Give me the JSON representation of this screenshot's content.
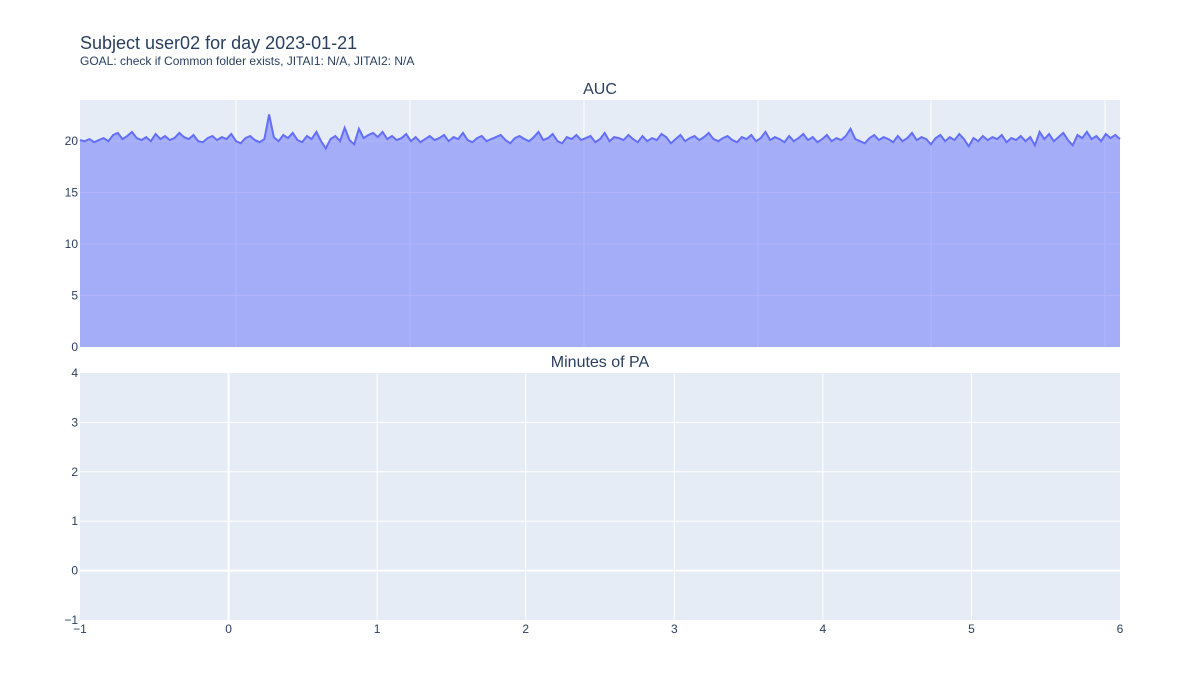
{
  "header": {
    "title": "Subject user02 for day 2023-01-21",
    "subtitle": "GOAL: check if Common folder exists, JITAI1: N/A, JITAI2: N/A"
  },
  "colors": {
    "plot_bg": "#e5ecf6",
    "grid": "#ffffff",
    "line": "#636efa",
    "fill": "rgba(99,110,250,0.5)",
    "text": "#2a3f5f"
  },
  "chart_data": [
    {
      "type": "area",
      "title": "AUC",
      "ylim": [
        0,
        24
      ],
      "yticks": [
        "0",
        "5",
        "10",
        "15",
        "20"
      ],
      "ytick_values": [
        0,
        5,
        10,
        15,
        20
      ],
      "grid": true,
      "xtick_labels_shown": false,
      "values": [
        20.1,
        20.0,
        20.2,
        19.9,
        20.1,
        20.3,
        20.0,
        20.6,
        20.8,
        20.2,
        20.5,
        20.9,
        20.3,
        20.1,
        20.4,
        20.0,
        20.7,
        20.2,
        20.5,
        20.1,
        20.3,
        20.8,
        20.4,
        20.2,
        20.6,
        20.0,
        19.9,
        20.3,
        20.5,
        20.1,
        20.4,
        20.2,
        20.7,
        20.0,
        19.8,
        20.3,
        20.5,
        20.1,
        19.9,
        20.2,
        22.6,
        20.4,
        20.0,
        20.6,
        20.3,
        20.8,
        20.1,
        19.9,
        20.5,
        20.2,
        20.9,
        20.0,
        19.3,
        20.2,
        20.5,
        20.0,
        21.3,
        20.1,
        19.7,
        21.2,
        20.3,
        20.6,
        20.8,
        20.4,
        20.9,
        20.2,
        20.5,
        20.1,
        20.3,
        20.7,
        20.0,
        20.4,
        19.9,
        20.2,
        20.5,
        20.1,
        20.3,
        20.6,
        20.0,
        20.4,
        20.2,
        20.8,
        20.1,
        19.9,
        20.3,
        20.5,
        20.0,
        20.2,
        20.4,
        20.6,
        20.1,
        19.8,
        20.3,
        20.5,
        20.2,
        20.0,
        20.4,
        20.9,
        20.1,
        20.3,
        20.7,
        20.0,
        19.8,
        20.4,
        20.2,
        20.6,
        20.1,
        20.3,
        20.5,
        19.9,
        20.2,
        20.8,
        20.0,
        20.4,
        20.3,
        20.1,
        20.6,
        20.2,
        19.9,
        20.5,
        20.0,
        20.3,
        20.1,
        20.7,
        20.4,
        19.8,
        20.2,
        20.6,
        20.0,
        20.3,
        20.5,
        20.1,
        20.4,
        20.8,
        20.2,
        20.0,
        20.3,
        20.5,
        20.1,
        19.9,
        20.4,
        20.2,
        20.6,
        20.0,
        20.3,
        20.9,
        20.1,
        20.4,
        20.2,
        19.9,
        20.5,
        20.0,
        20.3,
        20.7,
        20.1,
        20.4,
        19.9,
        20.2,
        20.6,
        20.0,
        20.3,
        20.1,
        20.5,
        21.2,
        20.2,
        20.0,
        19.8,
        20.3,
        20.6,
        20.1,
        20.4,
        20.2,
        19.9,
        20.5,
        20.0,
        20.3,
        20.8,
        20.1,
        20.4,
        20.2,
        19.7,
        20.3,
        20.6,
        20.0,
        20.4,
        20.1,
        20.7,
        20.2,
        19.5,
        20.3,
        20.0,
        20.5,
        20.1,
        20.4,
        20.2,
        20.6,
        19.9,
        20.3,
        20.1,
        20.5,
        20.0,
        20.4,
        19.6,
        20.9,
        20.2,
        20.7,
        20.0,
        20.4,
        20.8,
        20.1,
        19.6,
        20.6,
        20.3,
        20.9,
        20.2,
        20.5,
        20.0,
        20.7,
        20.3,
        20.6,
        20.2
      ]
    },
    {
      "type": "line",
      "title": "Minutes of PA",
      "xlim": [
        -1,
        6
      ],
      "ylim": [
        -1,
        4
      ],
      "xticks": [
        "−1",
        "0",
        "1",
        "2",
        "3",
        "4",
        "5",
        "6"
      ],
      "xtick_values": [
        -1,
        0,
        1,
        2,
        3,
        4,
        5,
        6
      ],
      "yticks": [
        "−1",
        "0",
        "1",
        "2",
        "3",
        "4"
      ],
      "ytick_values": [
        -1,
        0,
        1,
        2,
        3,
        4
      ],
      "grid": true,
      "series": []
    }
  ]
}
